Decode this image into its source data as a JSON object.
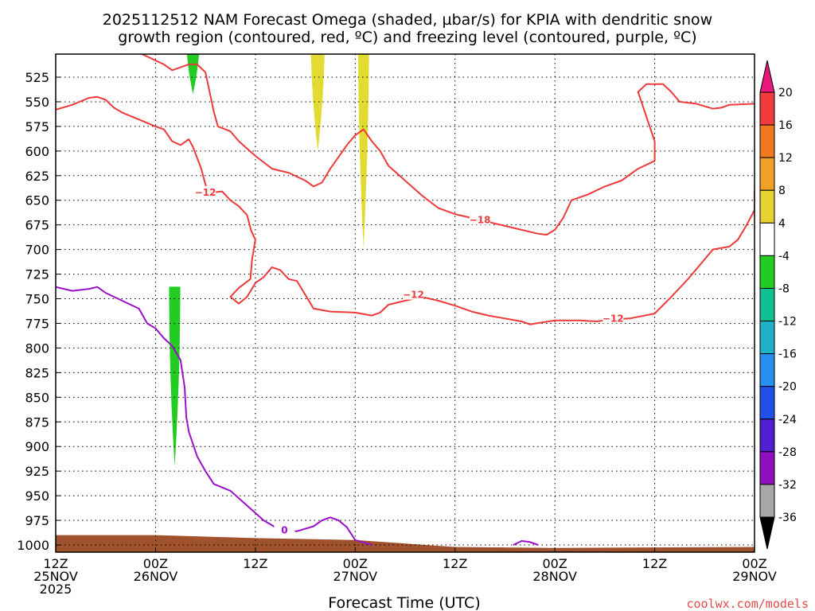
{
  "title": {
    "line1": "2025112512 NAM Forecast Omega (shaded, µbar/s) for KPIA with dendritic snow",
    "line2": "growth region (contoured, red, ºC) and freezing level (contoured, purple, ºC)"
  },
  "credit": "coolwx.com/models",
  "colors": {
    "frame": "#000000",
    "snow_contour": "#ee3a3a",
    "freezing_contour": "#9a10c8",
    "ground": "#a0522d",
    "omega_pos_shade": "#e2dc32",
    "omega_neg_shade": "#22cc22"
  },
  "chart_data": {
    "type": "line",
    "title": "2025112512 NAM Forecast Omega (shaded, µbar/s) for KPIA with dendritic snow growth region (contoured, red, ºC) and freezing level (contoured, purple, ºC)",
    "xlabel": "Forecast Time (UTC)",
    "ylabel": "",
    "xlim": [
      0,
      84
    ],
    "ylim": [
      1010,
      500
    ],
    "y_scale": "linear, pressure (hPa) increasing downward",
    "grid": true,
    "x_ticks": [
      {
        "h": 0,
        "label": [
          "12Z",
          "25NOV",
          "2025"
        ]
      },
      {
        "h": 12,
        "label": [
          "00Z",
          "26NOV"
        ]
      },
      {
        "h": 24,
        "label": [
          "12Z"
        ]
      },
      {
        "h": 36,
        "label": [
          "00Z",
          "27NOV"
        ]
      },
      {
        "h": 48,
        "label": [
          "12Z"
        ]
      },
      {
        "h": 60,
        "label": [
          "00Z",
          "28NOV"
        ]
      },
      {
        "h": 72,
        "label": [
          "12Z"
        ]
      },
      {
        "h": 84,
        "label": [
          "00Z",
          "29NOV"
        ]
      }
    ],
    "y_ticks": [
      525,
      550,
      575,
      600,
      625,
      650,
      675,
      700,
      725,
      750,
      775,
      800,
      825,
      850,
      875,
      900,
      925,
      950,
      975,
      1000
    ],
    "colorbar": {
      "labels": [
        "20",
        "16",
        "12",
        "8",
        "4",
        "-4",
        "-8",
        "-12",
        "-16",
        "-20",
        "-24",
        "-28",
        "-32",
        "-36"
      ],
      "colors": [
        "#e8197e",
        "#f03c3c",
        "#f07820",
        "#f0a028",
        "#e6d232",
        "#ffffff",
        "#22cc22",
        "#10c090",
        "#20b0c8",
        "#2890f0",
        "#2050e8",
        "#5020d0",
        "#9010c0",
        "#a8a8a8",
        "#000000"
      ]
    },
    "series": [
      {
        "name": "-12",
        "contour": "dendritic snow growth (-12 °C), upper branch",
        "label_at": [
          [
            18,
            642
          ],
          [
            43,
            746
          ],
          [
            67,
            770
          ]
        ],
        "points": [
          [
            0,
            558
          ],
          [
            2,
            553
          ],
          [
            4,
            546
          ],
          [
            5,
            545
          ],
          [
            6,
            548
          ],
          [
            7,
            556
          ],
          [
            8,
            561
          ],
          [
            10,
            568
          ],
          [
            12,
            575
          ],
          [
            13,
            578
          ],
          [
            14,
            590
          ],
          [
            15,
            594
          ],
          [
            16,
            588
          ],
          [
            16.5,
            596
          ],
          [
            17,
            607
          ],
          [
            17.5,
            618
          ],
          [
            18,
            634
          ],
          [
            18.5,
            643
          ],
          [
            19,
            642
          ],
          [
            20,
            641
          ],
          [
            21,
            650
          ],
          [
            22,
            656
          ],
          [
            23,
            665
          ],
          [
            23.5,
            681
          ],
          [
            24,
            690
          ],
          [
            23.6,
            710
          ],
          [
            23.4,
            730
          ],
          [
            22,
            739
          ],
          [
            21,
            748
          ],
          [
            22,
            755
          ],
          [
            23,
            748
          ],
          [
            24,
            734
          ],
          [
            25,
            728
          ],
          [
            26,
            718
          ],
          [
            27,
            721
          ],
          [
            28,
            730
          ],
          [
            29,
            732
          ],
          [
            30,
            746
          ],
          [
            31,
            760
          ],
          [
            33,
            763
          ],
          [
            36,
            764
          ],
          [
            38,
            767
          ],
          [
            39,
            764
          ],
          [
            40,
            756
          ],
          [
            42,
            752
          ],
          [
            44,
            748
          ],
          [
            46,
            752
          ],
          [
            48,
            757
          ],
          [
            50,
            763
          ],
          [
            52,
            767
          ],
          [
            54,
            770
          ],
          [
            56,
            773
          ],
          [
            57,
            776
          ],
          [
            60,
            772
          ],
          [
            63,
            772
          ],
          [
            65,
            773
          ],
          [
            67,
            771
          ],
          [
            69,
            770
          ],
          [
            72,
            765
          ],
          [
            74,
            748
          ],
          [
            76,
            730
          ],
          [
            78,
            710
          ],
          [
            79,
            700
          ],
          [
            81,
            697
          ],
          [
            82,
            690
          ],
          [
            83,
            676
          ],
          [
            84,
            660
          ],
          [
            84,
            640
          ]
        ]
      },
      {
        "name": "-18",
        "contour": "dendritic snow growth (-18 °C), lower branch",
        "label_at": [
          [
            51,
            670
          ]
        ],
        "points": [
          [
            10,
            500
          ],
          [
            12,
            508
          ],
          [
            13,
            512
          ],
          [
            14,
            518
          ],
          [
            15,
            515
          ],
          [
            16,
            512
          ],
          [
            17,
            512
          ],
          [
            18,
            520
          ],
          [
            18.5,
            540
          ],
          [
            19,
            560
          ],
          [
            19.5,
            575
          ],
          [
            21,
            580
          ],
          [
            22,
            590
          ],
          [
            24,
            605
          ],
          [
            26,
            618
          ],
          [
            28,
            622
          ],
          [
            30,
            630
          ],
          [
            31,
            636
          ],
          [
            32,
            632
          ],
          [
            33,
            618
          ],
          [
            34,
            606
          ],
          [
            35,
            594
          ],
          [
            36,
            584
          ],
          [
            37,
            578
          ],
          [
            38,
            590
          ],
          [
            39,
            600
          ],
          [
            40,
            615
          ],
          [
            42,
            630
          ],
          [
            44,
            645
          ],
          [
            46,
            658
          ],
          [
            48,
            664
          ],
          [
            50,
            668
          ],
          [
            52,
            672
          ],
          [
            54,
            676
          ],
          [
            56,
            680
          ],
          [
            58,
            684
          ],
          [
            59,
            685
          ],
          [
            60,
            680
          ],
          [
            61,
            668
          ],
          [
            62,
            650
          ],
          [
            64,
            644
          ],
          [
            66,
            636
          ],
          [
            68,
            630
          ],
          [
            70,
            618
          ],
          [
            72,
            610
          ],
          [
            72,
            590
          ],
          [
            71,
            565
          ],
          [
            70,
            540
          ],
          [
            71,
            532
          ],
          [
            73,
            532
          ],
          [
            74,
            540
          ],
          [
            75,
            550
          ],
          [
            77,
            552
          ],
          [
            79,
            557
          ],
          [
            80,
            556
          ],
          [
            81,
            553
          ],
          [
            84,
            552
          ]
        ]
      },
      {
        "name": "0",
        "contour": "freezing level (0 °C)",
        "label_at": [
          [
            27.5,
            985
          ]
        ],
        "points": [
          [
            0,
            738
          ],
          [
            2,
            742
          ],
          [
            4,
            740
          ],
          [
            5,
            738
          ],
          [
            6,
            744
          ],
          [
            8,
            752
          ],
          [
            10,
            760
          ],
          [
            11,
            775
          ],
          [
            12,
            780
          ],
          [
            13,
            790
          ],
          [
            14,
            798
          ],
          [
            15,
            812
          ],
          [
            15.5,
            840
          ],
          [
            15.7,
            870
          ],
          [
            16,
            885
          ],
          [
            17,
            910
          ],
          [
            18,
            925
          ],
          [
            19,
            938
          ],
          [
            21,
            945
          ],
          [
            23,
            960
          ],
          [
            25,
            975
          ],
          [
            27,
            985
          ],
          [
            29,
            986
          ],
          [
            31,
            981
          ],
          [
            32,
            975
          ],
          [
            33,
            972
          ],
          [
            34,
            975
          ],
          [
            35,
            982
          ],
          [
            36,
            995
          ],
          [
            38,
            1000
          ]
        ]
      },
      {
        "name": "0 (late)",
        "contour": "freezing level (0 °C), second segment",
        "label_at": [],
        "points": [
          [
            55,
            1000
          ],
          [
            56,
            996
          ],
          [
            57,
            997
          ],
          [
            58,
            1000
          ]
        ]
      }
    ],
    "omega_shading": [
      {
        "value_range": "4 to 8",
        "color": "#e2dc32",
        "time_center": 31.5,
        "pressure_range": [
          500,
          600
        ]
      },
      {
        "value_range": "4 to 8",
        "color": "#e2dc32",
        "time_center": 37,
        "pressure_range": [
          500,
          698
        ]
      },
      {
        "value_range": "-4 to -8",
        "color": "#22cc22",
        "time_center": 16.5,
        "pressure_range": [
          500,
          542
        ]
      },
      {
        "value_range": "-4 to -8",
        "color": "#22cc22",
        "time_center": 14.3,
        "pressure_range": [
          762,
          920
        ]
      }
    ],
    "ground": {
      "pressure_top": [
        990,
        990,
        993,
        995,
        1002,
        1003,
        1002
      ],
      "times": [
        0,
        12,
        24,
        36,
        48,
        60,
        84
      ]
    }
  }
}
